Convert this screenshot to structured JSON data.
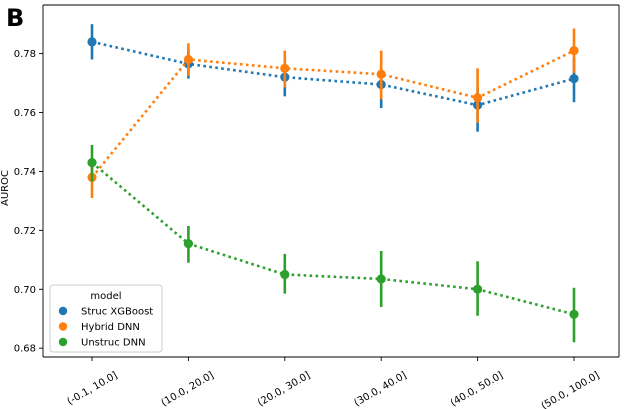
{
  "panel_label": "B",
  "chart_data": {
    "type": "line",
    "ylabel": "AUROC",
    "xlabel": "",
    "categories": [
      "(-0.1, 10.0]",
      "(10.0, 20.0]",
      "(20.0, 30.0]",
      "(30.0, 40.0]",
      "(40.0, 50.0]",
      "(50.0, 100.0]"
    ],
    "ylim": [
      0.677,
      0.7965
    ],
    "yticks": [
      0.68,
      0.7,
      0.72,
      0.74,
      0.76,
      0.78
    ],
    "yticks_labels": [
      "0.68",
      "0.70",
      "0.72",
      "0.74",
      "0.76",
      "0.78"
    ],
    "grid": false,
    "legend": {
      "title": "model",
      "placement": "lower-left"
    },
    "series": [
      {
        "name": "Struc XGBoost",
        "color": "#1f77b4",
        "values": [
          0.784,
          0.7765,
          0.772,
          0.7695,
          0.7625,
          0.7715
        ],
        "ci_low": [
          0.778,
          0.7715,
          0.7655,
          0.7615,
          0.7535,
          0.7635
        ],
        "ci_high": [
          0.79,
          0.7815,
          0.777,
          0.7755,
          0.7685,
          0.7785
        ]
      },
      {
        "name": "Hybrid DNN",
        "color": "#ff7f0e",
        "values": [
          0.738,
          0.778,
          0.775,
          0.773,
          0.765,
          0.781
        ],
        "ci_low": [
          0.731,
          0.7725,
          0.7685,
          0.7645,
          0.7565,
          0.7735
        ],
        "ci_high": [
          0.7445,
          0.7835,
          0.781,
          0.781,
          0.775,
          0.7885
        ]
      },
      {
        "name": "Unstruc DNN",
        "color": "#2ca02c",
        "values": [
          0.743,
          0.7155,
          0.705,
          0.7035,
          0.7,
          0.6915
        ],
        "ci_low": [
          0.7365,
          0.709,
          0.6985,
          0.694,
          0.691,
          0.682
        ],
        "ci_high": [
          0.749,
          0.7215,
          0.712,
          0.713,
          0.7095,
          0.7005
        ]
      }
    ]
  }
}
